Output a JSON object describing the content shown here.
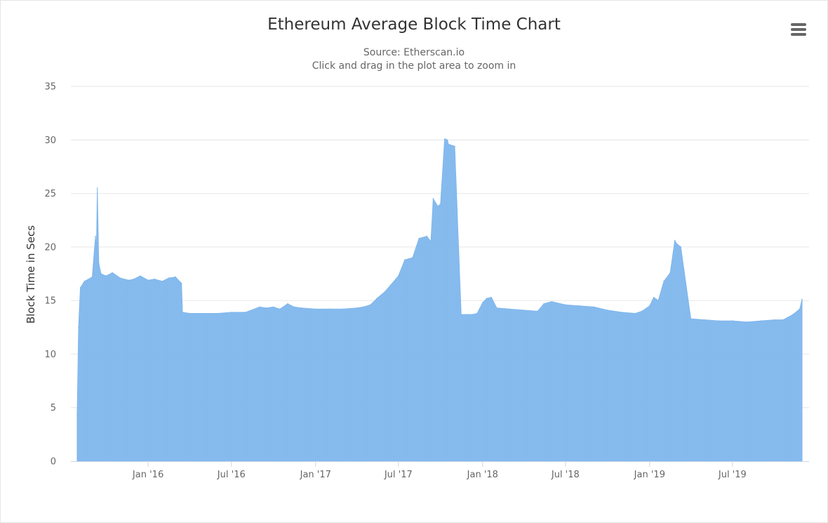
{
  "menu": {
    "icon": "hamburger-menu-icon"
  },
  "colors": {
    "series": "#7cb5ec",
    "grid": "#e6e6e6",
    "text": "#666666",
    "title": "#333333"
  },
  "chart_data": {
    "type": "area",
    "title": "Ethereum Average Block Time Chart",
    "subtitle": [
      "Source: Etherscan.io",
      "Click and drag in the plot area to zoom in"
    ],
    "ylabel": "Block Time in Secs",
    "xlabel": "",
    "ylim": [
      0,
      35
    ],
    "yticks": [
      0,
      5,
      10,
      15,
      20,
      25,
      30,
      35
    ],
    "xlim": [
      "2015-07-30",
      "2019-11-30"
    ],
    "xticks": [
      {
        "date": "2016-01-01",
        "label": "Jan '16"
      },
      {
        "date": "2016-07-01",
        "label": "Jul '16"
      },
      {
        "date": "2017-01-01",
        "label": "Jan '17"
      },
      {
        "date": "2017-07-01",
        "label": "Jul '17"
      },
      {
        "date": "2018-01-01",
        "label": "Jan '18"
      },
      {
        "date": "2018-07-01",
        "label": "Jul '18"
      },
      {
        "date": "2019-01-01",
        "label": "Jan '19"
      },
      {
        "date": "2019-07-01",
        "label": "Jul '19"
      }
    ],
    "grid": true,
    "legend": "none",
    "series": [
      {
        "x": [
          "2015-07-30",
          "2015-08-02",
          "2015-08-06",
          "2015-08-15",
          "2015-09-01",
          "2015-09-08",
          "2015-09-10",
          "2015-09-12",
          "2015-09-15",
          "2015-09-20",
          "2015-10-01",
          "2015-10-15",
          "2015-11-01",
          "2015-11-20",
          "2015-12-01",
          "2015-12-15",
          "2016-01-01",
          "2016-01-15",
          "2016-02-01",
          "2016-02-15",
          "2016-03-01",
          "2016-03-14",
          "2016-03-16",
          "2016-04-01",
          "2016-05-01",
          "2016-06-01",
          "2016-07-01",
          "2016-08-01",
          "2016-09-01",
          "2016-09-15",
          "2016-10-01",
          "2016-10-15",
          "2016-11-01",
          "2016-11-15",
          "2016-12-01",
          "2017-01-01",
          "2017-02-01",
          "2017-03-01",
          "2017-04-01",
          "2017-04-15",
          "2017-05-01",
          "2017-05-15",
          "2017-06-01",
          "2017-06-15",
          "2017-07-01",
          "2017-07-15",
          "2017-08-01",
          "2017-08-15",
          "2017-09-01",
          "2017-09-10",
          "2017-09-15",
          "2017-09-25",
          "2017-10-01",
          "2017-10-10",
          "2017-10-16",
          "2017-10-18",
          "2017-11-01",
          "2017-11-15",
          "2017-12-01",
          "2017-12-10",
          "2017-12-20",
          "2018-01-01",
          "2018-01-10",
          "2018-01-20",
          "2018-02-01",
          "2018-03-01",
          "2018-04-01",
          "2018-05-01",
          "2018-05-15",
          "2018-06-01",
          "2018-07-01",
          "2018-08-01",
          "2018-09-01",
          "2018-10-01",
          "2018-11-01",
          "2018-12-01",
          "2018-12-15",
          "2019-01-01",
          "2019-01-10",
          "2019-01-20",
          "2019-02-01",
          "2019-02-15",
          "2019-02-25",
          "2019-03-01",
          "2019-03-10",
          "2019-04-01",
          "2019-05-01",
          "2019-06-01",
          "2019-07-01",
          "2019-08-01",
          "2019-09-01",
          "2019-10-01",
          "2019-10-20",
          "2019-11-10",
          "2019-11-25",
          "2019-11-30"
        ],
        "values": [
          4.3,
          12.5,
          16.2,
          16.8,
          17.2,
          21.0,
          19.5,
          25.5,
          18.5,
          17.5,
          17.3,
          17.6,
          17.1,
          16.9,
          17.0,
          17.3,
          16.9,
          17.0,
          16.8,
          17.1,
          17.2,
          16.6,
          13.9,
          13.8,
          13.8,
          13.8,
          13.9,
          13.9,
          14.4,
          14.3,
          14.4,
          14.2,
          14.7,
          14.4,
          14.3,
          14.2,
          14.2,
          14.2,
          14.3,
          14.4,
          14.6,
          15.2,
          15.8,
          16.5,
          17.3,
          18.8,
          19.0,
          20.8,
          21.0,
          20.5,
          24.5,
          23.8,
          24.0,
          30.1,
          30.0,
          29.6,
          29.4,
          13.7,
          13.7,
          13.7,
          13.8,
          14.8,
          15.2,
          15.3,
          14.3,
          14.2,
          14.1,
          14.0,
          14.7,
          14.9,
          14.6,
          14.5,
          14.4,
          14.1,
          13.9,
          13.8,
          14.0,
          14.5,
          15.3,
          15.0,
          16.8,
          17.6,
          20.6,
          20.3,
          20.0,
          13.3,
          13.2,
          13.1,
          13.1,
          13.0,
          13.1,
          13.2,
          13.2,
          13.7,
          14.2,
          15.1
        ]
      }
    ]
  }
}
